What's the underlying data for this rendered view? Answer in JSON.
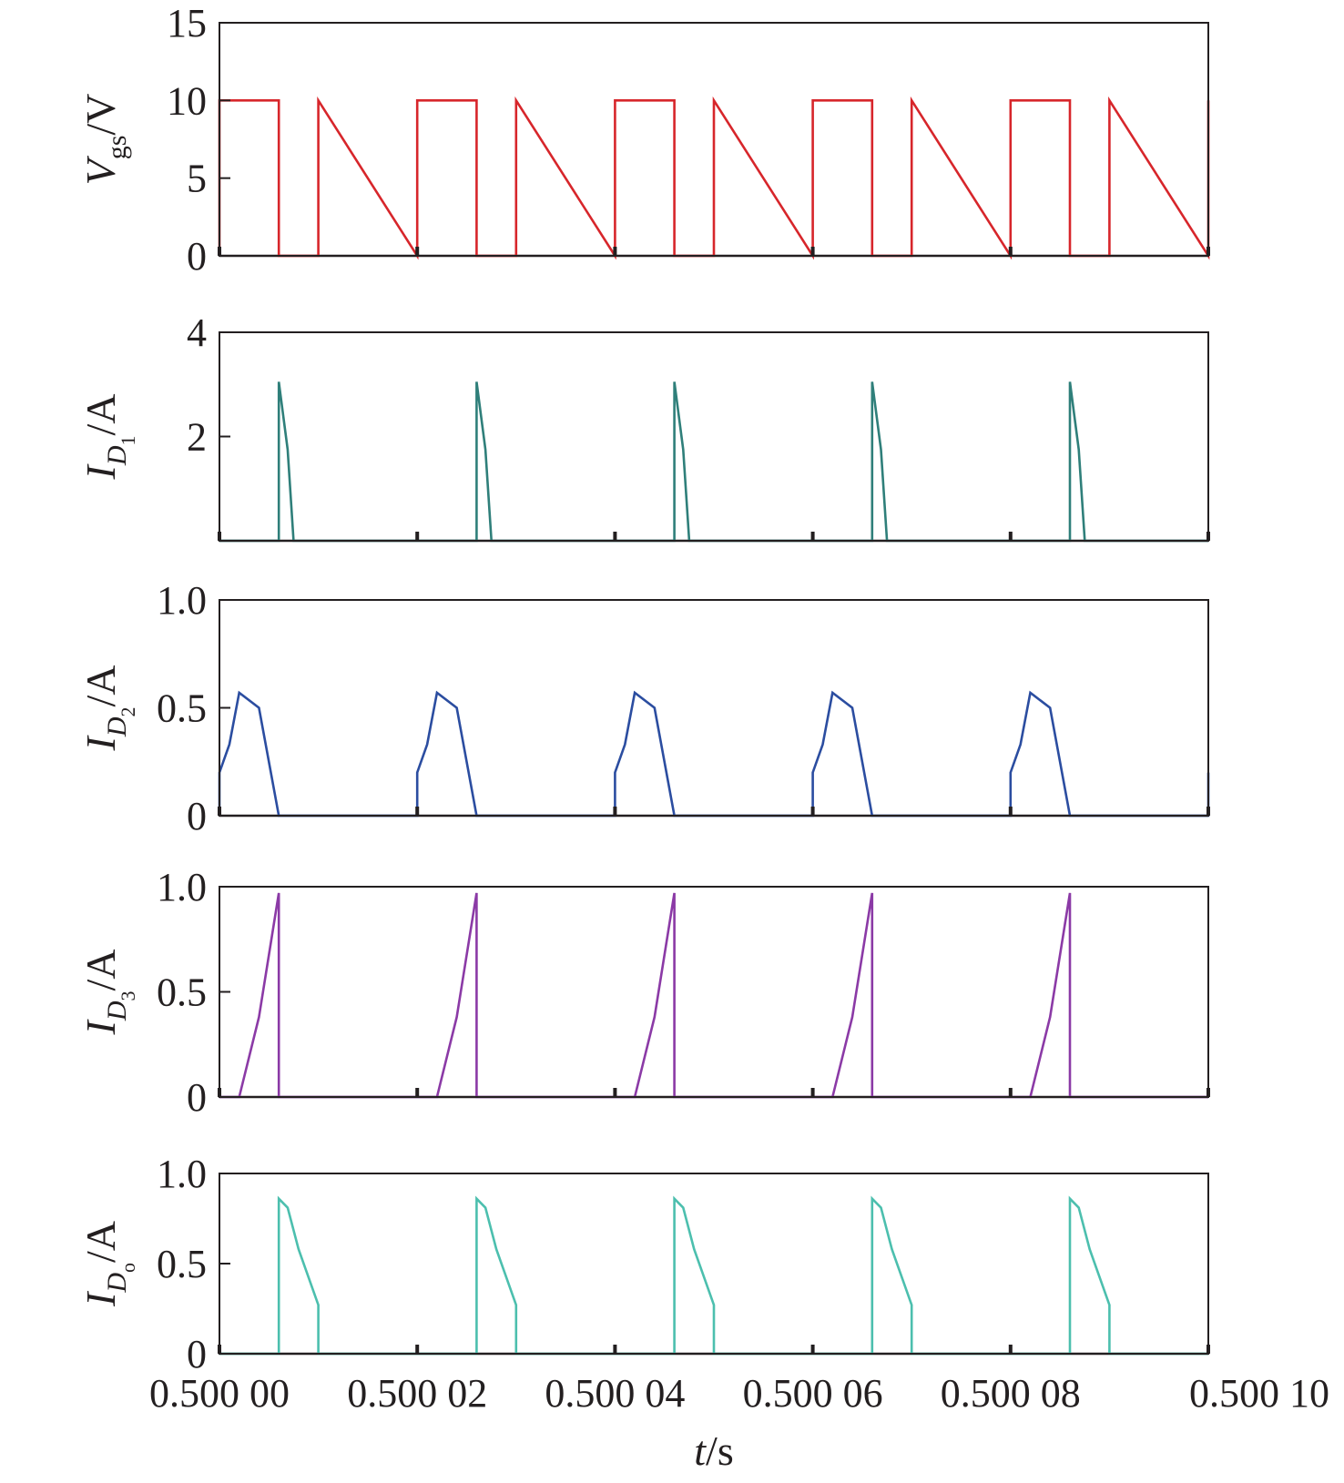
{
  "chart_data": [
    {
      "type": "line",
      "ylabel": {
        "main": "V",
        "sub": "gs",
        "unit": "/V"
      },
      "ylim": [
        0,
        15
      ],
      "yticks": [
        {
          "value": 0,
          "label": "0"
        },
        {
          "value": 5,
          "label": "5"
        },
        {
          "value": 10,
          "label": "10"
        },
        {
          "value": 15,
          "label": "15"
        }
      ],
      "color": "#d7262b",
      "period_us": 4,
      "series": [
        {
          "x": [
            0,
            0,
            1.2,
            1.2,
            2,
            2
          ],
          "y": [
            0,
            10,
            10,
            0,
            0,
            10
          ]
        }
      ]
    },
    {
      "type": "line",
      "ylabel": {
        "main": "I",
        "sub": "D",
        "subsub": "1",
        "unit": "/A"
      },
      "ylim": [
        0,
        4
      ],
      "yticks": [
        {
          "value": 2,
          "label": "2"
        },
        {
          "value": 4,
          "label": "4"
        }
      ],
      "color": "#2f7f7a",
      "period_us": 4,
      "series": [
        {
          "x": [
            0,
            1.2,
            1.2,
            1.38,
            1.5,
            2
          ],
          "y": [
            0,
            0,
            3.05,
            1.75,
            0,
            0
          ]
        }
      ]
    },
    {
      "type": "line",
      "ylabel": {
        "main": "I",
        "sub": "D",
        "subsub": "2",
        "unit": "/A"
      },
      "ylim": [
        0,
        1.0
      ],
      "yticks": [
        {
          "value": 0,
          "label": "0"
        },
        {
          "value": 0.5,
          "label": "0.5"
        },
        {
          "value": 1.0,
          "label": "1.0"
        }
      ],
      "color": "#2b4da0",
      "period_us": 4,
      "series": [
        {
          "x": [
            0,
            0,
            0.2,
            0.4,
            0.8,
            1.2,
            2
          ],
          "y": [
            0,
            0.2,
            0.33,
            0.57,
            0.5,
            0,
            0
          ]
        }
      ]
    },
    {
      "type": "line",
      "ylabel": {
        "main": "I",
        "sub": "D",
        "subsub": "3",
        "unit": "/A"
      },
      "ylim": [
        0,
        1.0
      ],
      "yticks": [
        {
          "value": 0,
          "label": "0"
        },
        {
          "value": 0.5,
          "label": "0.5"
        },
        {
          "value": 1.0,
          "label": "1.0"
        }
      ],
      "color": "#8b3aa6",
      "period_us": 4,
      "series": [
        {
          "x": [
            0,
            0.4,
            0.8,
            1.2,
            1.2,
            2
          ],
          "y": [
            0,
            0,
            0.38,
            0.97,
            0,
            0
          ]
        }
      ]
    },
    {
      "type": "line",
      "ylabel": {
        "main": "I",
        "sub": "D",
        "subsub": "o",
        "unit": "/A"
      },
      "ylim": [
        0,
        1.0
      ],
      "yticks": [
        {
          "value": 0,
          "label": "0"
        },
        {
          "value": 0.5,
          "label": "0.5"
        },
        {
          "value": 1.0,
          "label": "1.0"
        }
      ],
      "color": "#4cbfae",
      "period_us": 4,
      "series": [
        {
          "x": [
            0,
            1.2,
            1.2,
            1.38,
            1.6,
            2,
            2
          ],
          "y": [
            0,
            0,
            0.86,
            0.81,
            0.58,
            0.27,
            0
          ]
        }
      ]
    }
  ],
  "x_axis": {
    "label_italic": "t",
    "label_unit": "/s",
    "xlim_us": [
      0,
      20
    ],
    "ticks": [
      {
        "value_us": 0,
        "label": "0.500 00"
      },
      {
        "value_us": 4,
        "label": "0.500 02"
      },
      {
        "value_us": 8,
        "label": "0.500 04"
      },
      {
        "value_us": 12,
        "label": "0.500 06"
      },
      {
        "value_us": 16,
        "label": "0.500 08"
      },
      {
        "value_us": 20,
        "label": "0.500 10"
      }
    ]
  }
}
